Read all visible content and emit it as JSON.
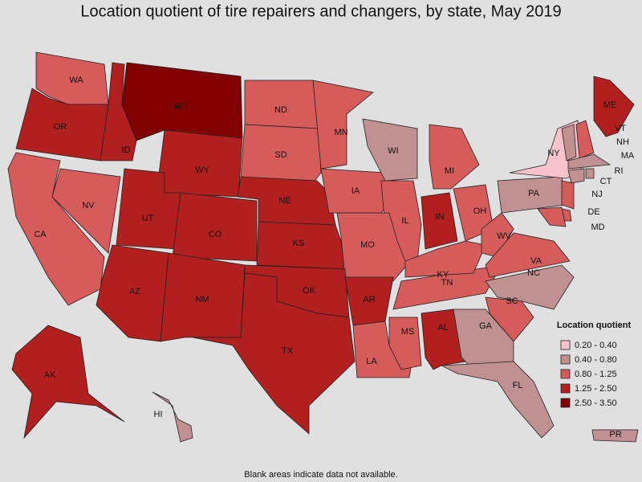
{
  "title": "Location quotient of tire repairers and changers, by state, May 2019",
  "legend": {
    "title": "Location quotient",
    "items": [
      {
        "label": "0.20 - 0.40",
        "color": "#f9c3cc"
      },
      {
        "label": "0.40 - 0.80",
        "color": "#c19191"
      },
      {
        "label": "0.80 - 1.25",
        "color": "#d65b5b"
      },
      {
        "label": "1.25 - 2.50",
        "color": "#b11f1f"
      },
      {
        "label": "2.50 - 3.50",
        "color": "#800000"
      }
    ]
  },
  "states": [
    {
      "label": "WA",
      "class": 2
    },
    {
      "label": "OR",
      "class": 3
    },
    {
      "label": "ID",
      "class": 3
    },
    {
      "label": "MT",
      "class": 4
    },
    {
      "label": "WY",
      "class": 3
    },
    {
      "label": "ND",
      "class": 2
    },
    {
      "label": "SD",
      "class": 2
    },
    {
      "label": "NE",
      "class": 3
    },
    {
      "label": "MN",
      "class": 2
    },
    {
      "label": "IA",
      "class": 2
    },
    {
      "label": "WI",
      "class": 1
    },
    {
      "label": "MI",
      "class": 2
    },
    {
      "label": "IL",
      "class": 2
    },
    {
      "label": "IN",
      "class": 3
    },
    {
      "label": "OH",
      "class": 2
    },
    {
      "label": "PA",
      "class": 1
    },
    {
      "label": "NY",
      "class": 0
    },
    {
      "label": "NV",
      "class": 2
    },
    {
      "label": "CA",
      "class": 2
    },
    {
      "label": "UT",
      "class": 3
    },
    {
      "label": "CO",
      "class": 3
    },
    {
      "label": "AZ",
      "class": 3
    },
    {
      "label": "NM",
      "class": 3
    },
    {
      "label": "KS",
      "class": 3
    },
    {
      "label": "MO",
      "class": 2
    },
    {
      "label": "OK",
      "class": 3
    },
    {
      "label": "TX",
      "class": 3
    },
    {
      "label": "AR",
      "class": 3
    },
    {
      "label": "LA",
      "class": 2
    },
    {
      "label": "MS",
      "class": 2
    },
    {
      "label": "AL",
      "class": 3
    },
    {
      "label": "TN",
      "class": 2
    },
    {
      "label": "KY",
      "class": 2
    },
    {
      "label": "WV",
      "class": 2
    },
    {
      "label": "VA",
      "class": 2
    },
    {
      "label": "NC",
      "class": 1
    },
    {
      "label": "SC",
      "class": 2
    },
    {
      "label": "GA",
      "class": 1
    },
    {
      "label": "FL",
      "class": 1
    },
    {
      "label": "ME",
      "class": 3
    },
    {
      "label": "VT",
      "class": 1
    },
    {
      "label": "NH",
      "class": 2
    },
    {
      "label": "MA",
      "class": 1
    },
    {
      "label": "CT",
      "class": 1
    },
    {
      "label": "RI",
      "class": 1
    },
    {
      "label": "NJ",
      "class": 2
    },
    {
      "label": "DE",
      "class": 2
    },
    {
      "label": "MD",
      "class": 2
    },
    {
      "label": "AK",
      "class": 3
    },
    {
      "label": "HI",
      "class": 1
    },
    {
      "label": "PR",
      "class": 1
    }
  ],
  "footnote": "Blank areas indicate data not available."
}
